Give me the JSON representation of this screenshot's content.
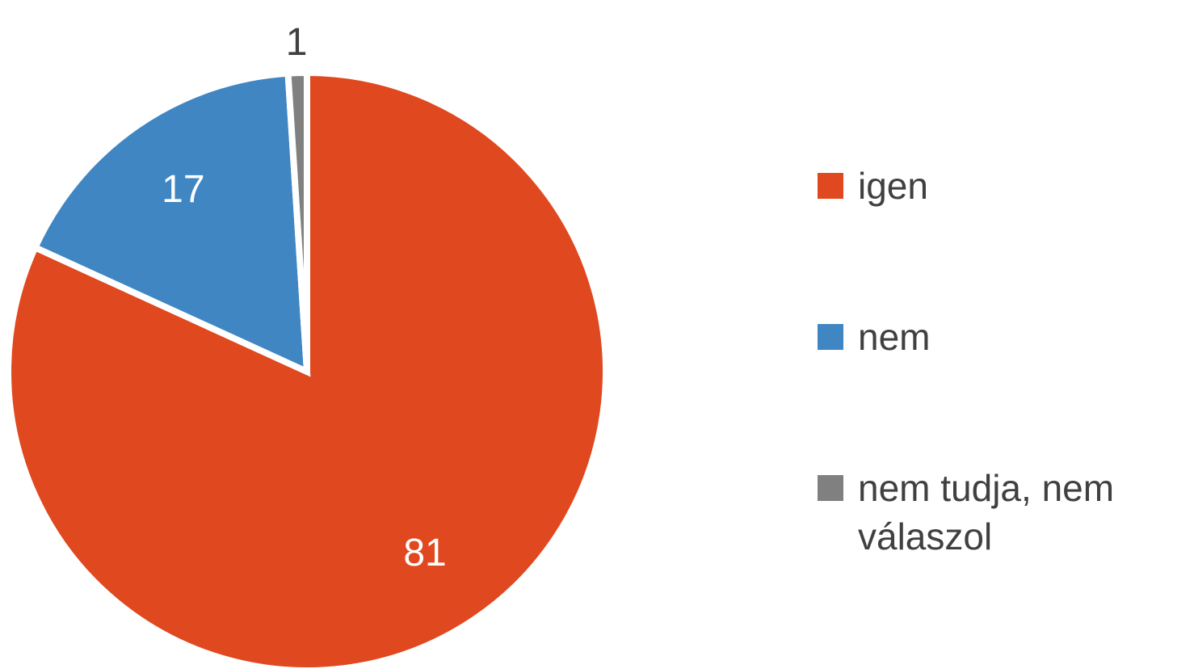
{
  "chart_data": {
    "type": "pie",
    "categories": [
      "igen",
      "nem",
      "nem tudja, nem válaszol"
    ],
    "values": [
      81,
      17,
      1
    ],
    "colors": [
      "#e0481f",
      "#3f86c3",
      "#808080"
    ],
    "legend": "right"
  }
}
